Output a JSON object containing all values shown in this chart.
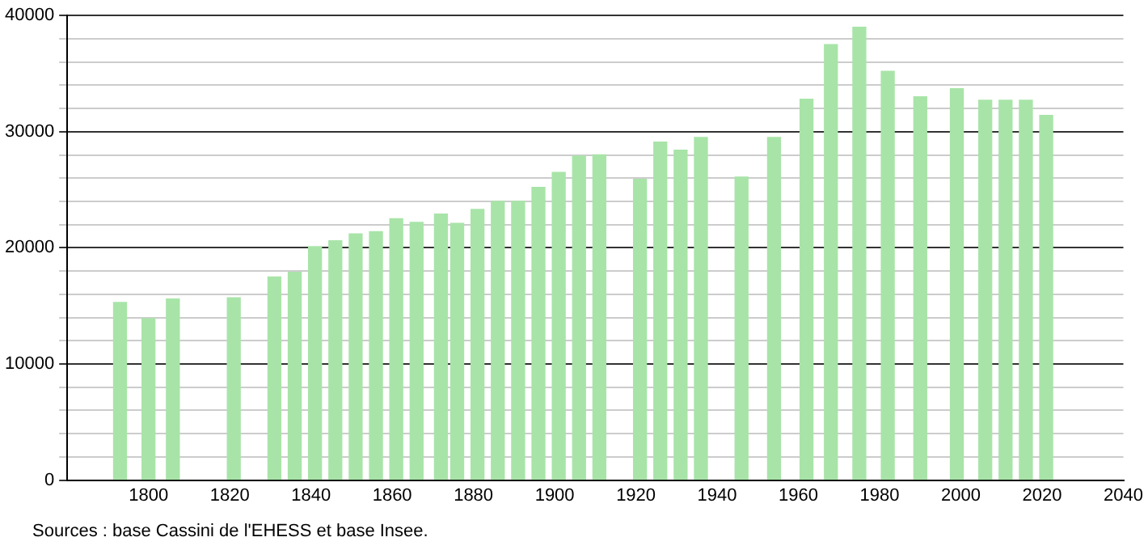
{
  "chart_data": {
    "type": "bar",
    "color": "#a8e4a8",
    "x": [
      1793,
      1800,
      1806,
      1821,
      1831,
      1836,
      1841,
      1846,
      1851,
      1856,
      1861,
      1866,
      1872,
      1876,
      1881,
      1886,
      1891,
      1896,
      1901,
      1906,
      1911,
      1921,
      1926,
      1931,
      1936,
      1946,
      1954,
      1962,
      1968,
      1975,
      1982,
      1990,
      1999,
      2006,
      2011,
      2016,
      2021
    ],
    "values": [
      15300,
      13900,
      15600,
      15700,
      17500,
      17900,
      20100,
      20600,
      21200,
      21400,
      22500,
      22200,
      22900,
      22100,
      23300,
      24000,
      24000,
      25200,
      26500,
      27900,
      28000,
      25900,
      29100,
      28400,
      29500,
      26100,
      29500,
      32800,
      37500,
      39000,
      35200,
      33000,
      33700,
      32700,
      32700,
      32700,
      31400
    ],
    "xlim": [
      1780,
      2040
    ],
    "xticks": [
      1800,
      1820,
      1840,
      1860,
      1880,
      1900,
      1920,
      1940,
      1960,
      1980,
      2000,
      2020,
      2040
    ],
    "ylim": [
      0,
      40000
    ],
    "yticks": [
      0,
      {
        "value": 2000,
        "label": null
      },
      {
        "value": 4000,
        "label": null
      },
      {
        "value": 6000,
        "label": null
      },
      {
        "value": 8000,
        "label": null
      },
      10000,
      {
        "value": 12000,
        "label": null
      },
      {
        "value": 14000,
        "label": null
      },
      {
        "value": 16000,
        "label": null
      },
      {
        "value": 18000,
        "label": null
      },
      20000,
      {
        "value": 22000,
        "label": null
      },
      {
        "value": 24000,
        "label": null
      },
      {
        "value": 26000,
        "label": null
      },
      {
        "value": 28000,
        "label": null
      },
      30000,
      {
        "value": 32000,
        "label": null
      },
      {
        "value": 34000,
        "label": null
      },
      {
        "value": 36000,
        "label": null
      },
      {
        "value": 38000,
        "label": null
      },
      40000
    ],
    "grid": "y",
    "legend": false,
    "annotations": [
      "Sources : base Cassini de l'EHESS et base Insee."
    ]
  }
}
